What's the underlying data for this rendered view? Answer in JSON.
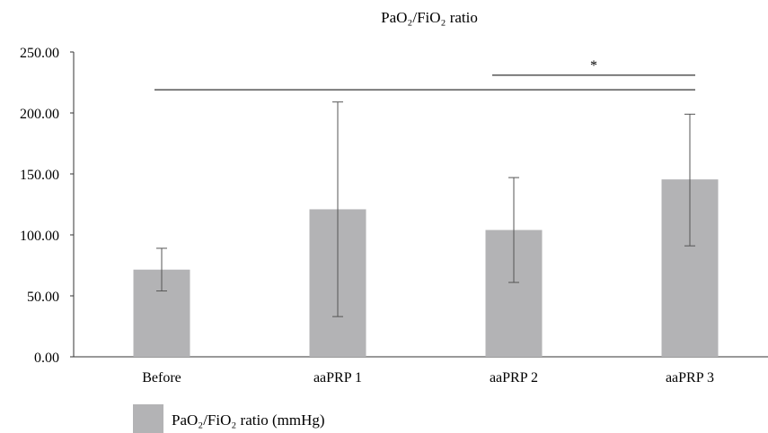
{
  "chart_data": {
    "type": "bar",
    "title": "PaO₂/FiO₂ ratio",
    "categories": [
      "Before",
      "aaPRP 1",
      "aaPRP 2",
      "aaPRP 3"
    ],
    "series": [
      {
        "name": "PaO₂/FiO₂ ratio (mmHg)",
        "values": [
          71.5,
          121.0,
          104.0,
          145.5
        ],
        "error_low": [
          54.0,
          33.0,
          61.0,
          91.0
        ],
        "error_high": [
          89.0,
          209.0,
          147.0,
          199.0
        ],
        "color": "#b3b3b5"
      }
    ],
    "ylim": [
      0,
      250
    ],
    "yticks": [
      "0.00",
      "50.00",
      "100.00",
      "150.00",
      "200.00",
      "250.00"
    ],
    "ytick_values": [
      0,
      50,
      100,
      150,
      200,
      250
    ],
    "grid": false,
    "legend_position": "bottom-left",
    "significance": [
      {
        "from": "Before",
        "to": "aaPRP 3",
        "y": 219,
        "label": ""
      },
      {
        "from": "aaPRP 2",
        "to": "aaPRP 3",
        "y": 231,
        "label": "*"
      }
    ]
  }
}
